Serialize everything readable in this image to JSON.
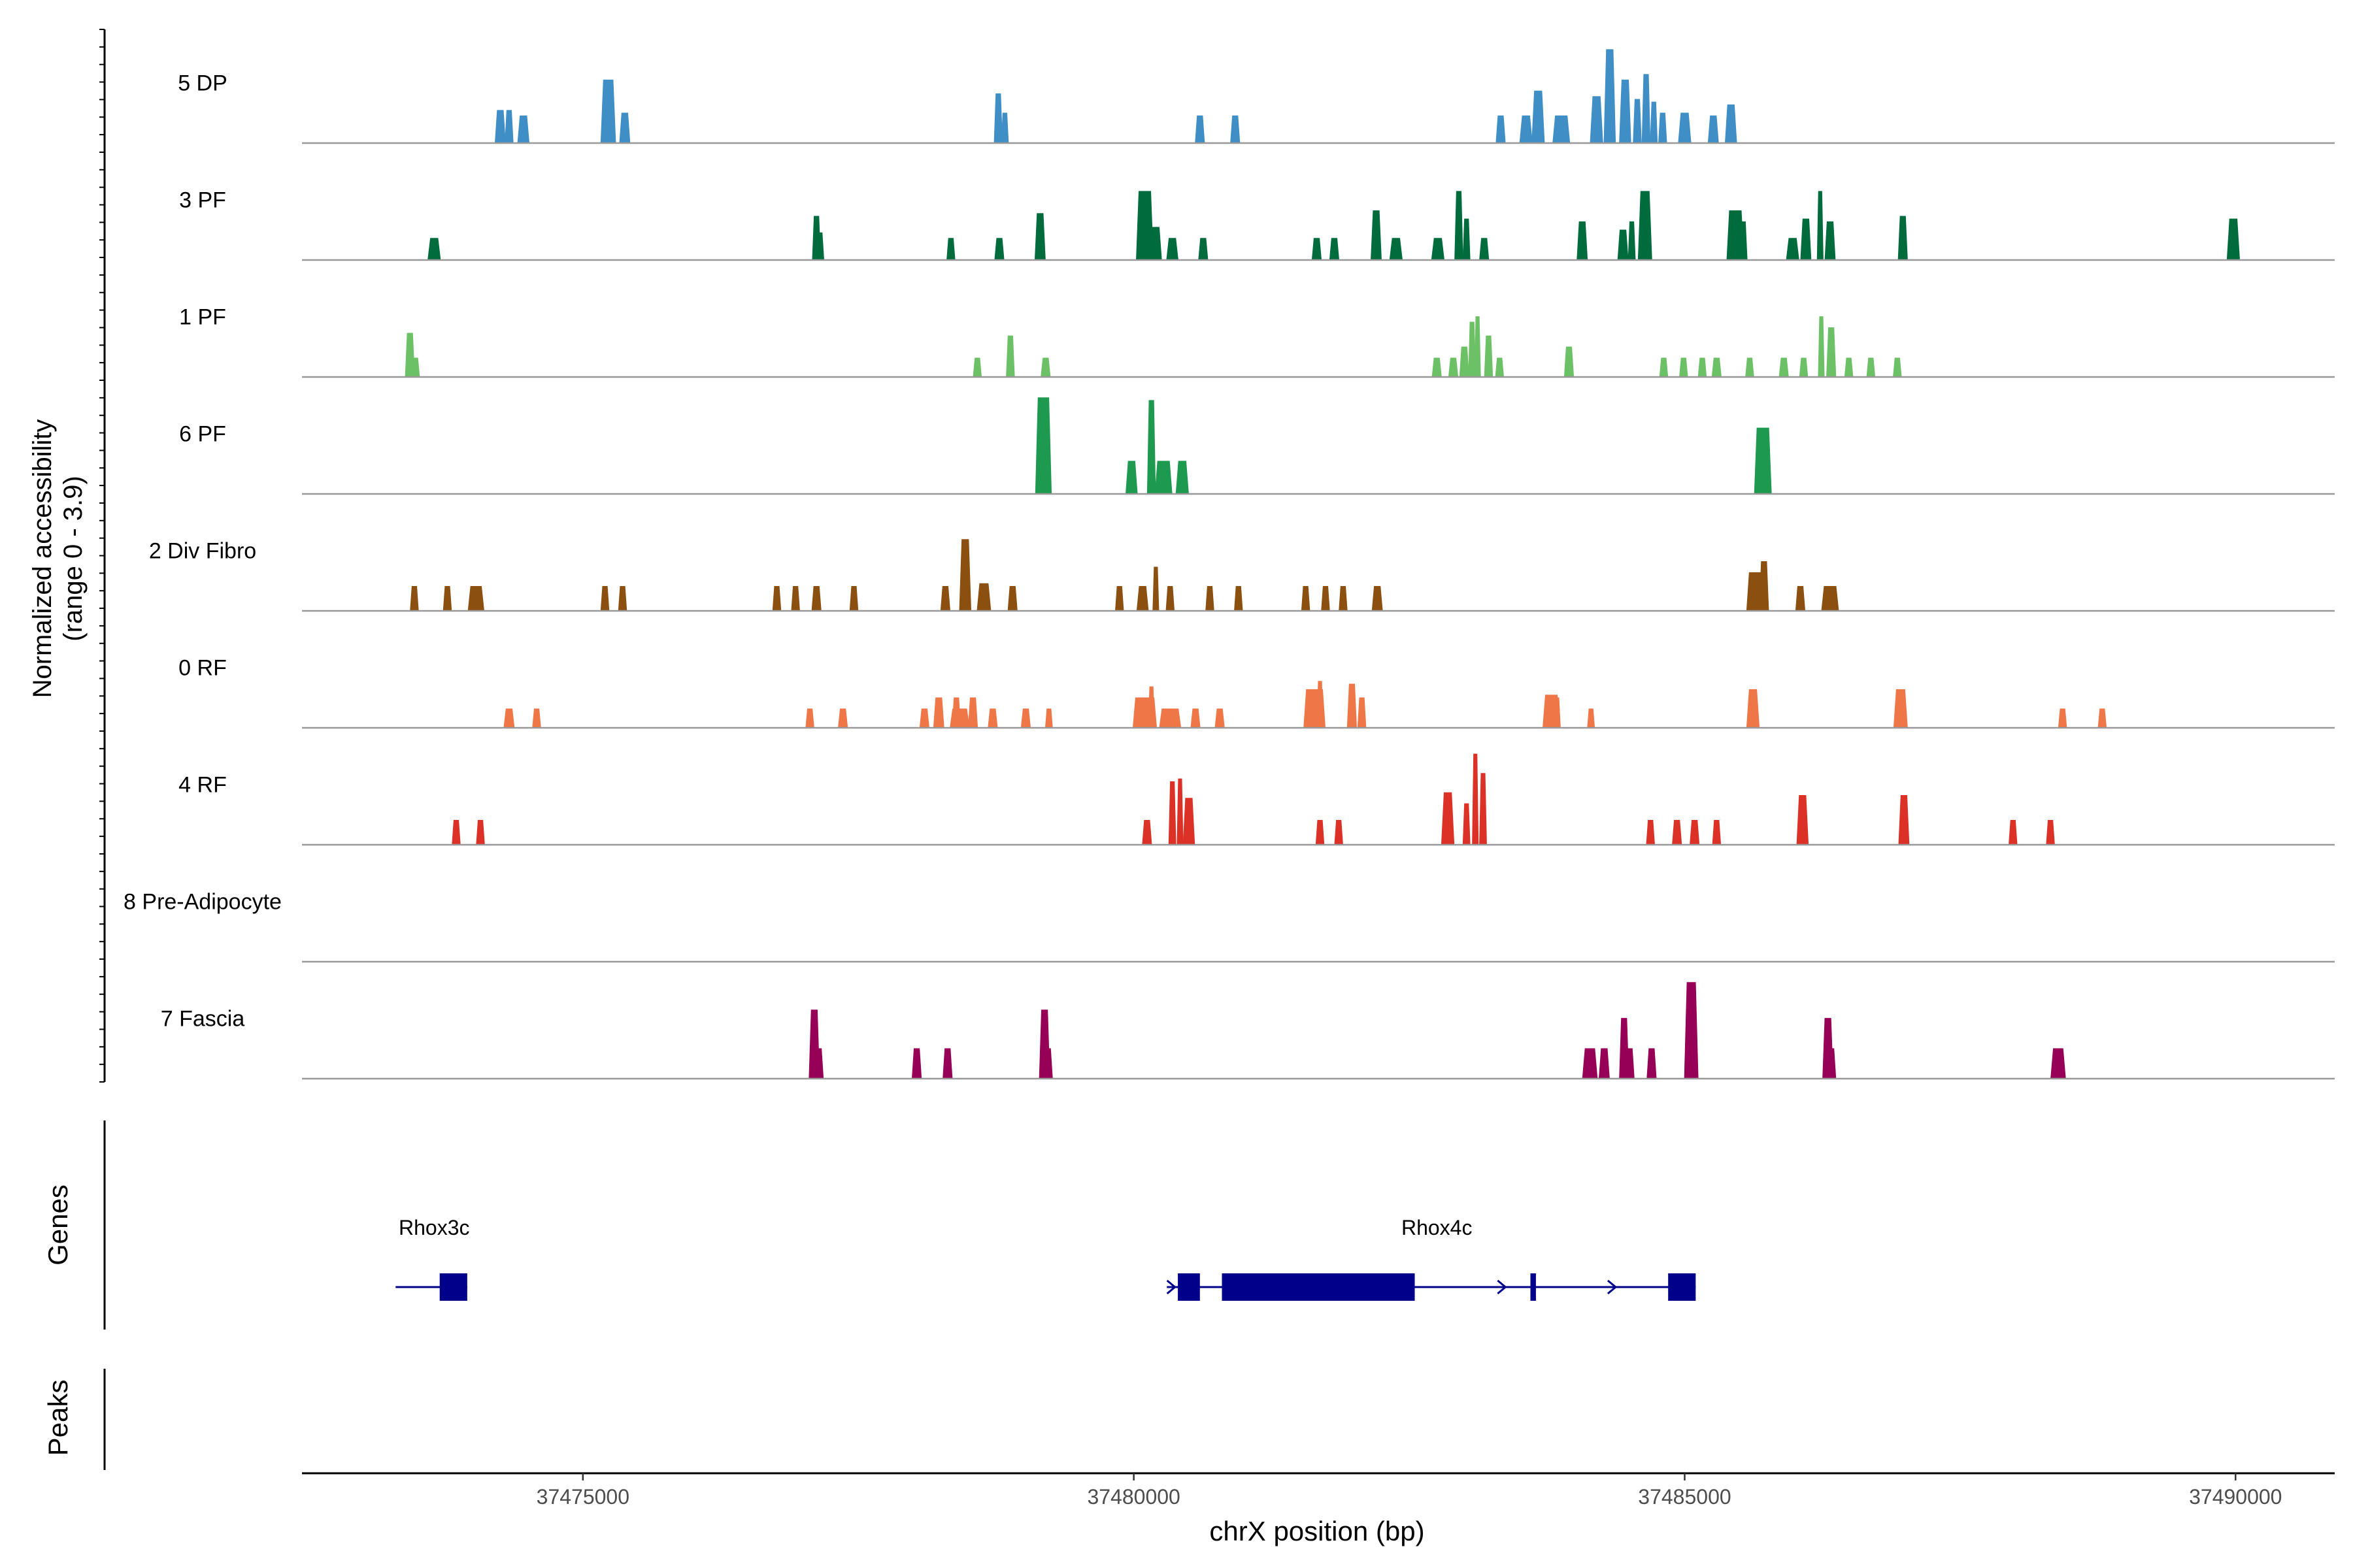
{
  "chart_data": {
    "type": "area",
    "title": "",
    "xlabel": "chrX position (bp)",
    "ylabel_line1": "Normalized accessibility",
    "ylabel_line2": "(range 0 - 3.9)",
    "genes_label": "Genes",
    "peaks_label": "Peaks",
    "xlim": [
      37472450,
      37490900
    ],
    "x_ticks": [
      37475000,
      37480000,
      37485000,
      37490000
    ],
    "x_tick_labels": [
      "37475000",
      "37480000",
      "37485000",
      "37490000"
    ],
    "y_range": [
      0,
      3.9
    ],
    "tracks": [
      {
        "name": "5 DP",
        "color": "#3f8ec6",
        "peaks": [
          [
            37474250,
            100,
            1.2
          ],
          [
            37474330,
            80,
            1.2
          ],
          [
            37474460,
            110,
            1.0
          ],
          [
            37475230,
            140,
            2.3
          ],
          [
            37475380,
            100,
            1.1
          ],
          [
            37478770,
            80,
            1.8
          ],
          [
            37478830,
            70,
            1.1
          ],
          [
            37480600,
            90,
            1.0
          ],
          [
            37480920,
            90,
            1.0
          ],
          [
            37483330,
            90,
            1.0
          ],
          [
            37483560,
            120,
            1.0
          ],
          [
            37483670,
            120,
            1.9
          ],
          [
            37483880,
            160,
            1.0
          ],
          [
            37484200,
            120,
            1.7
          ],
          [
            37484320,
            110,
            3.4
          ],
          [
            37484460,
            110,
            2.3
          ],
          [
            37484570,
            80,
            1.6
          ],
          [
            37484650,
            80,
            2.5
          ],
          [
            37484720,
            70,
            1.5
          ],
          [
            37484800,
            80,
            1.1
          ],
          [
            37485000,
            120,
            1.1
          ],
          [
            37485260,
            100,
            1.0
          ],
          [
            37485420,
            110,
            1.4
          ]
        ]
      },
      {
        "name": "3 PF",
        "color": "#006b3c",
        "peaks": [
          [
            37473650,
            120,
            0.8
          ],
          [
            37477120,
            80,
            1.6
          ],
          [
            37477150,
            80,
            1.0
          ],
          [
            37478340,
            80,
            0.8
          ],
          [
            37478780,
            90,
            0.8
          ],
          [
            37479150,
            100,
            1.7
          ],
          [
            37480100,
            160,
            2.5
          ],
          [
            37480200,
            110,
            1.2
          ],
          [
            37480350,
            110,
            0.8
          ],
          [
            37480630,
            90,
            0.8
          ],
          [
            37481660,
            90,
            0.8
          ],
          [
            37481820,
            90,
            0.8
          ],
          [
            37482200,
            100,
            1.8
          ],
          [
            37482380,
            120,
            0.8
          ],
          [
            37482760,
            120,
            0.8
          ],
          [
            37482950,
            80,
            2.5
          ],
          [
            37483020,
            70,
            1.5
          ],
          [
            37483180,
            90,
            0.8
          ],
          [
            37484070,
            100,
            1.4
          ],
          [
            37484440,
            100,
            1.1
          ],
          [
            37484520,
            70,
            1.4
          ],
          [
            37484640,
            130,
            2.5
          ],
          [
            37485460,
            160,
            1.8
          ],
          [
            37485530,
            80,
            1.4
          ],
          [
            37485980,
            120,
            0.8
          ],
          [
            37486100,
            100,
            1.5
          ],
          [
            37486230,
            60,
            2.5
          ],
          [
            37486320,
            100,
            1.4
          ],
          [
            37486980,
            90,
            1.6
          ],
          [
            37489980,
            120,
            1.5
          ]
        ]
      },
      {
        "name": "1 PF",
        "color": "#6cc065",
        "peaks": [
          [
            37473430,
            90,
            1.6
          ],
          [
            37473480,
            80,
            0.7
          ],
          [
            37478580,
            80,
            0.7
          ],
          [
            37478880,
            80,
            1.5
          ],
          [
            37479200,
            90,
            0.7
          ],
          [
            37482750,
            90,
            0.7
          ],
          [
            37482900,
            90,
            0.7
          ],
          [
            37483070,
            70,
            2.0
          ],
          [
            37483120,
            60,
            2.2
          ],
          [
            37483000,
            90,
            1.1
          ],
          [
            37483220,
            80,
            1.5
          ],
          [
            37483320,
            80,
            0.7
          ],
          [
            37483950,
            90,
            1.1
          ],
          [
            37484990,
            80,
            0.7
          ],
          [
            37485160,
            80,
            0.7
          ],
          [
            37485290,
            90,
            0.7
          ],
          [
            37485590,
            80,
            0.7
          ],
          [
            37485900,
            90,
            0.7
          ],
          [
            37486080,
            80,
            0.7
          ],
          [
            37486240,
            60,
            2.2
          ],
          [
            37486330,
            90,
            1.8
          ],
          [
            37486490,
            80,
            0.7
          ],
          [
            37486690,
            80,
            0.7
          ],
          [
            37486930,
            80,
            0.7
          ],
          [
            37484810,
            80,
            0.7
          ]
        ]
      },
      {
        "name": "6 PF",
        "color": "#1e9a50",
        "peaks": [
          [
            37479180,
            150,
            3.5
          ],
          [
            37479980,
            110,
            1.2
          ],
          [
            37480160,
            80,
            3.4
          ],
          [
            37480270,
            160,
            1.2
          ],
          [
            37480440,
            120,
            1.2
          ],
          [
            37485710,
            160,
            2.4
          ]
        ]
      },
      {
        "name": "2 Div Fibro",
        "color": "#8b4f10",
        "peaks": [
          [
            37473470,
            80,
            0.9
          ],
          [
            37473770,
            80,
            0.9
          ],
          [
            37474030,
            150,
            0.9
          ],
          [
            37475200,
            80,
            0.9
          ],
          [
            37475360,
            80,
            0.9
          ],
          [
            37476760,
            80,
            0.9
          ],
          [
            37476930,
            80,
            0.9
          ],
          [
            37477120,
            90,
            0.9
          ],
          [
            37477460,
            80,
            0.9
          ],
          [
            37478290,
            90,
            0.9
          ],
          [
            37478470,
            110,
            2.6
          ],
          [
            37478640,
            130,
            1.0
          ],
          [
            37478900,
            90,
            0.9
          ],
          [
            37479870,
            80,
            0.9
          ],
          [
            37480080,
            110,
            0.9
          ],
          [
            37480200,
            60,
            1.6
          ],
          [
            37480330,
            80,
            0.9
          ],
          [
            37480690,
            80,
            0.9
          ],
          [
            37480950,
            80,
            0.9
          ],
          [
            37481560,
            80,
            0.9
          ],
          [
            37481740,
            80,
            0.9
          ],
          [
            37481900,
            80,
            0.9
          ],
          [
            37482210,
            100,
            0.9
          ],
          [
            37485640,
            160,
            1.4
          ],
          [
            37485720,
            90,
            1.8
          ],
          [
            37486050,
            90,
            0.9
          ],
          [
            37486320,
            160,
            0.9
          ]
        ]
      },
      {
        "name": "0 RF",
        "color": "#ef7646",
        "peaks": [
          [
            37474330,
            100,
            0.7
          ],
          [
            37474580,
            80,
            0.7
          ],
          [
            37477060,
            80,
            0.7
          ],
          [
            37477360,
            90,
            0.7
          ],
          [
            37478100,
            90,
            0.7
          ],
          [
            37478230,
            100,
            1.1
          ],
          [
            37478390,
            80,
            1.1
          ],
          [
            37478540,
            90,
            1.1
          ],
          [
            37478420,
            180,
            0.7
          ],
          [
            37478720,
            90,
            0.7
          ],
          [
            37479020,
            90,
            0.7
          ],
          [
            37479230,
            70,
            0.7
          ],
          [
            37480100,
            220,
            1.1
          ],
          [
            37480330,
            200,
            0.7
          ],
          [
            37480160,
            60,
            1.5
          ],
          [
            37480560,
            90,
            0.7
          ],
          [
            37480780,
            90,
            0.7
          ],
          [
            37481640,
            200,
            1.4
          ],
          [
            37481690,
            60,
            1.7
          ],
          [
            37481980,
            90,
            1.6
          ],
          [
            37482070,
            80,
            1.1
          ],
          [
            37483790,
            160,
            1.2
          ],
          [
            37483840,
            70,
            1.1
          ],
          [
            37484150,
            70,
            0.7
          ],
          [
            37485620,
            120,
            1.4
          ],
          [
            37486960,
            130,
            1.4
          ],
          [
            37488430,
            80,
            0.7
          ],
          [
            37488790,
            80,
            0.7
          ]
        ]
      },
      {
        "name": "4 RF",
        "color": "#dc3127",
        "peaks": [
          [
            37473850,
            80,
            0.9
          ],
          [
            37474070,
            80,
            0.9
          ],
          [
            37480120,
            90,
            0.9
          ],
          [
            37480350,
            70,
            2.3
          ],
          [
            37480420,
            60,
            2.4
          ],
          [
            37480500,
            110,
            1.7
          ],
          [
            37481690,
            80,
            0.9
          ],
          [
            37481860,
            80,
            0.9
          ],
          [
            37482850,
            120,
            1.9
          ],
          [
            37483020,
            70,
            1.5
          ],
          [
            37483100,
            60,
            3.3
          ],
          [
            37483170,
            70,
            2.6
          ],
          [
            37484690,
            80,
            0.9
          ],
          [
            37484930,
            90,
            0.9
          ],
          [
            37485090,
            90,
            0.9
          ],
          [
            37485290,
            80,
            0.9
          ],
          [
            37486070,
            110,
            1.8
          ],
          [
            37486990,
            100,
            1.8
          ],
          [
            37487980,
            80,
            0.9
          ],
          [
            37488320,
            80,
            0.9
          ]
        ]
      },
      {
        "name": "8 Pre-Adipocyte",
        "color": "#808080",
        "peaks": []
      },
      {
        "name": "7 Fascia",
        "color": "#960056",
        "peaks": [
          [
            37477100,
            100,
            2.5
          ],
          [
            37477140,
            90,
            1.1
          ],
          [
            37478030,
            90,
            1.1
          ],
          [
            37478310,
            90,
            1.1
          ],
          [
            37479190,
            100,
            2.5
          ],
          [
            37479220,
            90,
            1.1
          ],
          [
            37484140,
            140,
            1.1
          ],
          [
            37484270,
            100,
            1.1
          ],
          [
            37484450,
            90,
            2.2
          ],
          [
            37484500,
            90,
            1.1
          ],
          [
            37484700,
            90,
            1.1
          ],
          [
            37485060,
            130,
            3.5
          ],
          [
            37486300,
            100,
            2.2
          ],
          [
            37486330,
            90,
            1.1
          ],
          [
            37488390,
            140,
            1.1
          ]
        ]
      }
    ],
    "genes": [
      {
        "name": "Rhox3c",
        "color": "#00008b",
        "line": [
          37473300,
          37473950
        ],
        "exons": [
          [
            37473700,
            37473950
          ]
        ],
        "introns_arrows": [],
        "label_x": 37473650
      },
      {
        "name": "Rhox4c",
        "color": "#00008b",
        "line": [
          37480300,
          37485100
        ],
        "exons": [
          [
            37480400,
            37480600
          ],
          [
            37480800,
            37482550
          ],
          [
            37483600,
            37483650
          ],
          [
            37484850,
            37485100
          ]
        ],
        "introns_arrows": [
          37480350,
          37483350,
          37484350
        ],
        "label_x": 37482750
      }
    ]
  }
}
